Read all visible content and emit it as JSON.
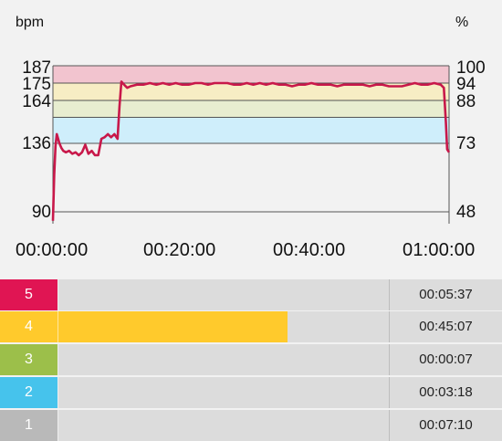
{
  "chart_data": {
    "type": "line",
    "left_unit": "bpm",
    "right_unit": "%",
    "left_ticks": [
      "187",
      "175",
      "164",
      "136",
      "90"
    ],
    "right_ticks": [
      "100",
      "94",
      "88",
      "73",
      "48"
    ],
    "x_ticks": [
      "00:00:00",
      "00:20:00",
      "00:40:00",
      "01:00:00"
    ],
    "ylim": [
      82,
      187
    ],
    "xlim_minutes": [
      0,
      61.3
    ],
    "zone_bands": [
      {
        "zone": 5,
        "from": 175,
        "to": 187,
        "color": "#f2c4cf"
      },
      {
        "zone": 4,
        "from": 164,
        "to": 175,
        "color": "#f7edc4"
      },
      {
        "zone": 3,
        "from": 153,
        "to": 164,
        "color": "#e8edd0"
      },
      {
        "zone": 2,
        "from": 136,
        "to": 153,
        "color": "#cfeefb"
      }
    ],
    "line_color": "#c8184a",
    "series": [
      {
        "x": [
          0,
          0.2,
          0.4,
          0.6,
          0.8,
          1,
          1.3,
          1.6,
          2,
          2.5,
          3,
          3.5,
          4,
          4.5,
          5,
          5.5,
          6,
          6.5,
          7,
          7.5,
          8,
          8.5,
          9,
          9.5,
          10,
          10.3,
          10.6,
          11,
          11.5,
          12,
          13,
          14,
          15,
          16,
          17,
          18,
          19,
          20,
          21,
          22,
          23,
          24,
          25,
          26,
          27,
          28,
          29,
          30,
          31,
          32,
          33,
          34,
          35,
          36,
          37,
          38,
          39,
          40,
          41,
          42,
          43,
          44,
          45,
          46,
          47,
          48,
          49,
          50,
          51,
          52,
          53,
          54,
          55,
          56,
          57,
          58,
          59,
          60,
          60.5,
          60.8,
          61,
          61.3
        ],
        "y": [
          84,
          115,
          134,
          142,
          139,
          136,
          133,
          131,
          130,
          131,
          129,
          130,
          128,
          130,
          135,
          129,
          131,
          128,
          128,
          139,
          140,
          142,
          140,
          142,
          139,
          160,
          176,
          174,
          172,
          173,
          174,
          174,
          175,
          174,
          175,
          174,
          175,
          174,
          174,
          175,
          175,
          174,
          175,
          175,
          175,
          174,
          174,
          175,
          174,
          175,
          174,
          175,
          174,
          174,
          173,
          174,
          174,
          175,
          174,
          174,
          174,
          173,
          174,
          174,
          174,
          174,
          173,
          174,
          174,
          173,
          173,
          173,
          174,
          175,
          174,
          174,
          175,
          174,
          172,
          150,
          132,
          130
        ]
      }
    ]
  },
  "zones": [
    {
      "num": "5",
      "time": "00:05:37",
      "color": "#e01553",
      "fraction": 0.092
    },
    {
      "num": "4",
      "time": "00:45:07",
      "color": "#ffca2c",
      "fraction": 0.737
    },
    {
      "num": "3",
      "time": "00:00:07",
      "color": "#9cbf4a",
      "fraction": 0.002
    },
    {
      "num": "2",
      "time": "00:03:18",
      "color": "#46c3ec",
      "fraction": 0.054
    },
    {
      "num": "1",
      "time": "00:07:10",
      "color": "#b9b9b9",
      "fraction": 0.117
    }
  ]
}
